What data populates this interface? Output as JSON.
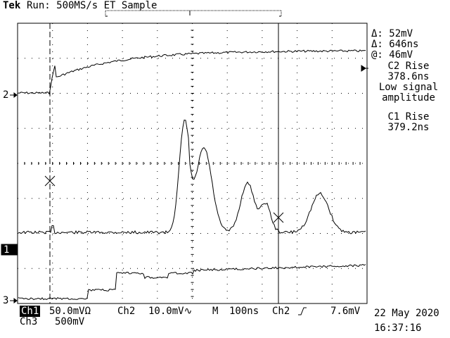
{
  "header": {
    "brand": "Tek",
    "status": "Run: 500MS/s ET Sample"
  },
  "measurements": {
    "delta_v": "Δ: 52mV",
    "delta_t": "Δ: 646ns",
    "at_v": "@: 46mV",
    "c2_rise_label": "C2 Rise",
    "c2_rise_value": "378.6ns",
    "c2_note_line1": "Low signal",
    "c2_note_line2": "amplitude",
    "c1_rise_label": "C1 Rise",
    "c1_rise_value": "379.2ns"
  },
  "channel_markers": {
    "ch2": "2",
    "ch1": "1",
    "ch3": "3"
  },
  "footer": {
    "ch1_label": "Ch1",
    "ch1_scale": "50.0mVΩ",
    "ch2_label": "Ch2",
    "ch2_scale": "10.0mV∿",
    "time_label": "M",
    "time_scale": "100ns",
    "trigger_source": "Ch2",
    "trigger_level": "7.6mV",
    "ch3_label": "Ch3",
    "ch3_scale": "500mV",
    "date": "22 May 2020",
    "time": "16:37:16"
  },
  "colors": {
    "background": "#ffffff",
    "trace": "#000000",
    "grid": "#000000"
  },
  "icons": [
    "trigger-position-marker",
    "trigger-level-arrow",
    "cursor-x-icon",
    "rising-edge-icon"
  ]
}
